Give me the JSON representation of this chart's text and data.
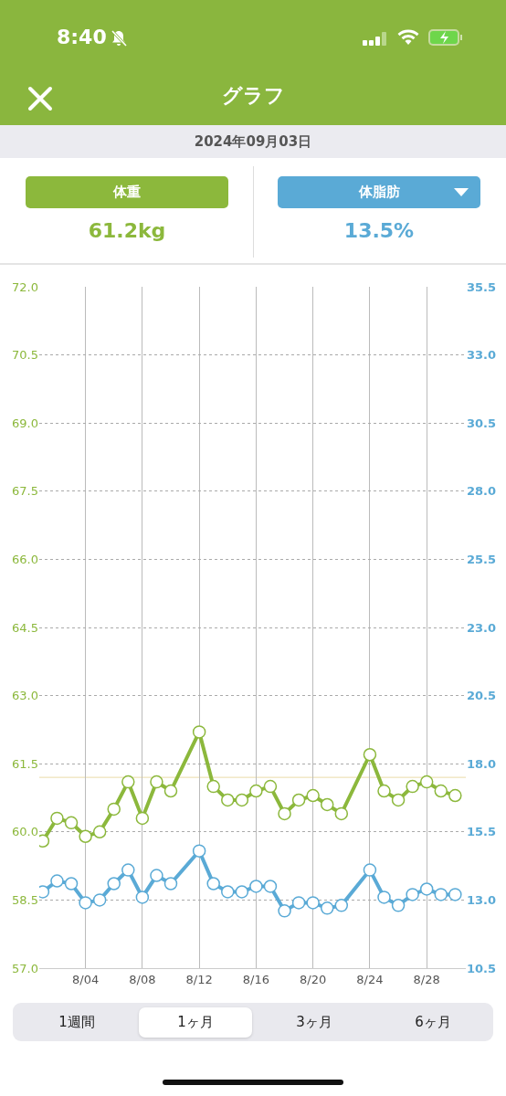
{
  "chart_data": {
    "type": "line",
    "title": "グラフ",
    "subtitle": "2024年09月03日",
    "annotations": [
      "61.2kg",
      "13.5%",
      "1週間",
      "1ヶ月",
      "3ヶ月",
      "6ヶ月",
      "8:40"
    ],
    "x": [
      "--08-01",
      "--08-02",
      "--08-03",
      "--08-04",
      "--08-05",
      "--08-06",
      "--08-07",
      "--08-08",
      "--08-09",
      "--08-10",
      "--08-12",
      "--08-13",
      "--08-14",
      "--08-15",
      "--08-16",
      "--08-17",
      "--08-18",
      "--08-19",
      "--08-20",
      "--08-21",
      "--08-22",
      "--08-24",
      "--08-25",
      "--08-26",
      "--08-27",
      "--08-28",
      "--08-29",
      "--08-30"
    ],
    "series": [
      {
        "name": "体重",
        "color": "#8cb83c",
        "values": [
          59.8,
          60.3,
          60.2,
          59.9,
          60.0,
          60.5,
          61.1,
          60.3,
          61.1,
          60.9,
          62.2,
          61.0,
          60.7,
          60.7,
          60.9,
          61.0,
          60.4,
          60.7,
          60.8,
          60.6,
          60.4,
          61.7,
          60.9,
          60.7,
          61.0,
          61.1,
          60.9,
          60.8
        ]
      },
      {
        "name": "体脂肪",
        "color": "#5aaad6",
        "axis": "y2",
        "values": [
          13.3,
          13.7,
          13.6,
          12.9,
          13.0,
          13.6,
          14.1,
          13.1,
          13.9,
          13.6,
          14.8,
          13.6,
          13.3,
          13.3,
          13.5,
          13.5,
          12.6,
          12.9,
          12.9,
          12.7,
          12.8,
          14.1,
          13.1,
          12.8,
          13.2,
          13.4,
          13.2,
          13.2
        ]
      }
    ],
    "xlim": [
      "--07-31T18:00",
      "--08-30T18:00"
    ],
    "xticks": [
      {
        "value": "--08-04",
        "label": "8/04"
      },
      {
        "value": "--08-08",
        "label": "8/08"
      },
      {
        "value": "--08-12",
        "label": "8/12"
      },
      {
        "value": "--08-16",
        "label": "8/16"
      },
      {
        "value": "--08-20",
        "label": "8/20"
      },
      {
        "value": "--08-24",
        "label": "8/24"
      },
      {
        "value": "--08-28",
        "label": "8/28"
      }
    ],
    "ylim": [
      57.0,
      72.0
    ],
    "yticks": [
      {
        "value": 57,
        "label": "57.0"
      },
      58.5,
      {
        "value": 60,
        "label": "60.0"
      },
      61.5,
      {
        "value": 63,
        "label": "63.0"
      },
      64.5,
      {
        "value": 66,
        "label": "66.0"
      },
      67.5,
      {
        "value": 69,
        "label": "69.0"
      },
      70.5,
      {
        "value": 72,
        "label": "72.0"
      }
    ],
    "y2lim": [
      10.5,
      35.5
    ],
    "y2ticks": [
      10.5,
      {
        "value": 13,
        "label": "13.0"
      },
      15.5,
      {
        "value": 18,
        "label": "18.0"
      },
      20.5,
      {
        "value": 23,
        "label": "23.0"
      },
      25.5,
      {
        "value": 28,
        "label": "28.0"
      },
      30.5,
      {
        "value": 33,
        "label": "33.0"
      },
      35.5
    ],
    "ref_lines": [
      {
        "axis": "y",
        "value": 61.2,
        "color": "#eadca8"
      }
    ],
    "grid": true,
    "legend": "top",
    "marker": "circle",
    "line_style": "solid"
  }
}
